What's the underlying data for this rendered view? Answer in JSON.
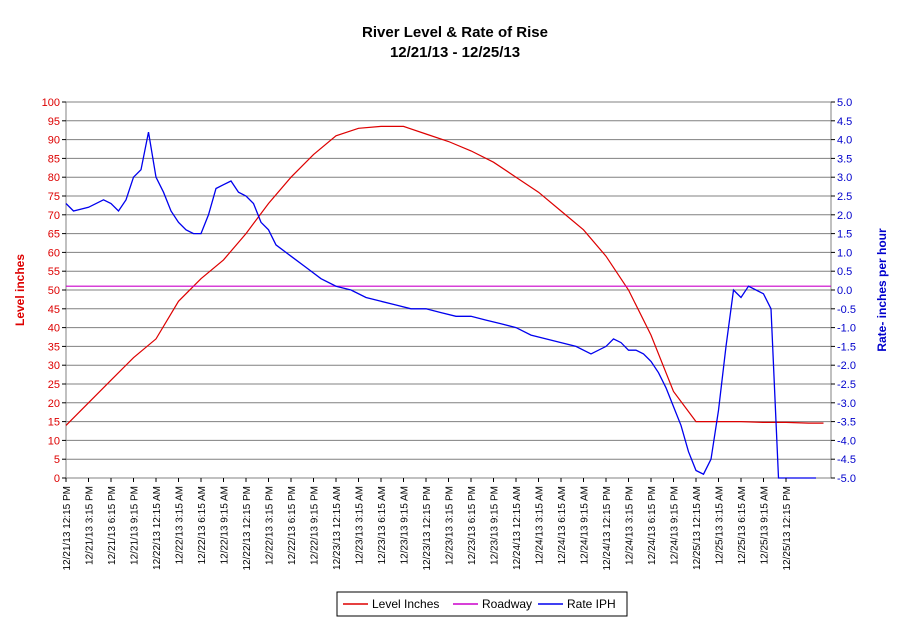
{
  "chart_data": {
    "type": "line",
    "title": "River Level & Rate of Rise",
    "subtitle": "12/21/13 - 12/25/13",
    "ylabel_left": "Level inches",
    "ylabel_right": "Rate- inches per hour",
    "ylim_left": [
      0,
      100
    ],
    "ylim_right": [
      -5.0,
      5.0
    ],
    "yticks_left": [
      "0",
      "5",
      "10",
      "15",
      "20",
      "25",
      "30",
      "35",
      "40",
      "45",
      "50",
      "55",
      "60",
      "65",
      "70",
      "75",
      "80",
      "85",
      "90",
      "95",
      "100"
    ],
    "yticks_right": [
      "-5.0",
      "-4.5",
      "-4.0",
      "-3.5",
      "-3.0",
      "-2.5",
      "-2.0",
      "-1.5",
      "-1.0",
      "-0.5",
      "0.0",
      "0.5",
      "1.0",
      "1.5",
      "2.0",
      "2.5",
      "3.0",
      "3.5",
      "4.0",
      "4.5",
      "5.0"
    ],
    "x_tick_labels": [
      "12/21/13 12:15 PM",
      "12/21/13 3:15 PM",
      "12/21/13 6:15 PM",
      "12/21/13 9:15 PM",
      "12/22/13 12:15 AM",
      "12/22/13 3:15 AM",
      "12/22/13 6:15 AM",
      "12/22/13 9:15 AM",
      "12/22/13 12:15 PM",
      "12/22/13 3:15 PM",
      "12/22/13 6:15 PM",
      "12/22/13 9:15 PM",
      "12/23/13 12:15 AM",
      "12/23/13 3:15 AM",
      "12/23/13 6:15 AM",
      "12/23/13 9:15 AM",
      "12/23/13 12:15 PM",
      "12/23/13 3:15 PM",
      "12/23/13 6:15 PM",
      "12/23/13 9:15 PM",
      "12/24/13 12:15 AM",
      "12/24/13 3:15 AM",
      "12/24/13 6:15 AM",
      "12/24/13 9:15 AM",
      "12/24/13 12:15 PM",
      "12/24/13 3:15 PM",
      "12/24/13 6:15 PM",
      "12/24/13 9:15 PM",
      "12/25/13 12:15 AM",
      "12/25/13 3:15 AM",
      "12/25/13 6:15 AM",
      "12/25/13 9:15 AM",
      "12/25/13 12:15 PM"
    ],
    "x_units": "hours from 12/21/13 12:15 PM",
    "x_max": 102,
    "grid": true,
    "legend_position": "bottom",
    "series": [
      {
        "name": "Level Inches",
        "axis": "left",
        "color": "#dd0000",
        "x": [
          0,
          3,
          6,
          9,
          12,
          15,
          18,
          21,
          24,
          27,
          30,
          33,
          36,
          39,
          42,
          45,
          48,
          51,
          54,
          57,
          60,
          63,
          66,
          69,
          72,
          75,
          78,
          81,
          84,
          87,
          90,
          93,
          96,
          99,
          101
        ],
        "y": [
          14,
          20,
          26,
          32,
          37,
          47,
          53,
          58,
          65,
          73,
          80,
          86,
          91,
          93,
          93.5,
          93.5,
          91.5,
          89.5,
          87,
          84,
          80,
          76,
          71,
          66,
          59,
          50,
          38,
          23,
          15,
          15,
          15,
          14.8,
          14.8,
          14.6,
          14.6
        ]
      },
      {
        "name": "Roadway",
        "axis": "left",
        "color": "#cc00cc",
        "x": [
          0,
          102
        ],
        "y": [
          51,
          51
        ]
      },
      {
        "name": "Rate IPH",
        "axis": "right",
        "color": "#0000ee",
        "x": [
          0,
          1,
          3,
          5,
          6,
          7,
          8,
          9,
          10,
          11,
          12,
          13,
          14,
          15,
          16,
          17,
          18,
          19,
          20,
          21,
          22,
          23,
          24,
          25,
          26,
          27,
          28,
          30,
          32,
          34,
          36,
          38,
          40,
          42,
          44,
          46,
          48,
          50,
          52,
          54,
          56,
          58,
          60,
          62,
          64,
          66,
          68,
          70,
          72,
          73,
          74,
          75,
          76,
          77,
          78,
          79,
          80,
          81,
          82,
          83,
          84,
          85,
          86,
          87,
          88,
          89,
          90,
          91,
          92,
          93,
          94,
          95,
          96,
          97,
          98,
          99,
          100
        ],
        "y": [
          2.3,
          2.1,
          2.2,
          2.4,
          2.3,
          2.1,
          2.4,
          3.0,
          3.2,
          4.2,
          3.0,
          2.6,
          2.1,
          1.8,
          1.6,
          1.5,
          1.5,
          2.0,
          2.7,
          2.8,
          2.9,
          2.6,
          2.5,
          2.3,
          1.8,
          1.6,
          1.2,
          0.9,
          0.6,
          0.3,
          0.1,
          0.0,
          -0.2,
          -0.3,
          -0.4,
          -0.5,
          -0.5,
          -0.6,
          -0.7,
          -0.7,
          -0.8,
          -0.9,
          -1.0,
          -1.2,
          -1.3,
          -1.4,
          -1.5,
          -1.7,
          -1.5,
          -1.3,
          -1.4,
          -1.6,
          -1.6,
          -1.7,
          -1.9,
          -2.2,
          -2.6,
          -3.1,
          -3.6,
          -4.3,
          -4.8,
          -4.9,
          -4.5,
          -3.2,
          -1.5,
          0.0,
          -0.2,
          0.1,
          0.0,
          -0.1,
          -0.5,
          -5.0,
          -5.0,
          -5.0,
          -5.0,
          -5.0,
          -5.0
        ]
      }
    ]
  },
  "legend": {
    "level_label": "Level Inches",
    "roadway_label": "Roadway",
    "rate_label": "Rate IPH"
  }
}
